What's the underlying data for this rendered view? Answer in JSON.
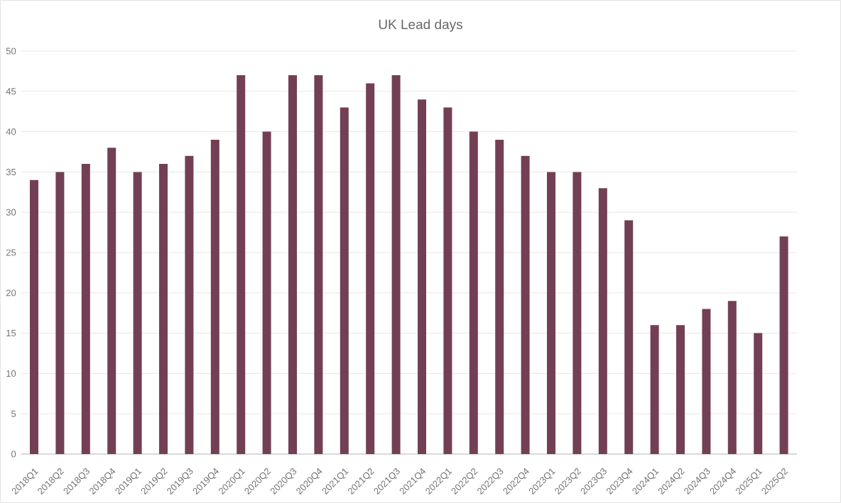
{
  "chart_data": {
    "type": "bar",
    "title": "UK Lead days",
    "categories": [
      "2018Q1",
      "2018Q2",
      "2018Q3",
      "2018Q4",
      "2019Q1",
      "2019Q2",
      "2019Q3",
      "2019Q4",
      "2020Q1",
      "2020Q2",
      "2020Q3",
      "2020Q4",
      "2021Q1",
      "2021Q2",
      "2021Q3",
      "2021Q4",
      "2022Q1",
      "2022Q2",
      "2022Q3",
      "2022Q4",
      "2023Q1",
      "2023Q2",
      "2023Q3",
      "2023Q4",
      "2024Q1",
      "2024Q2",
      "2024Q3",
      "2024Q4",
      "2025Q1",
      "2025Q2"
    ],
    "values": [
      34,
      35,
      36,
      38,
      35,
      36,
      37,
      39,
      47,
      40,
      47,
      47,
      43,
      46,
      47,
      44,
      43,
      40,
      39,
      37,
      35,
      35,
      33,
      29,
      16,
      16,
      18,
      19,
      15,
      27
    ],
    "color": "#733f55",
    "ylim": [
      0,
      50
    ],
    "yticks": [
      0,
      5,
      10,
      15,
      20,
      25,
      30,
      35,
      40,
      45,
      50
    ],
    "grid": "y"
  }
}
